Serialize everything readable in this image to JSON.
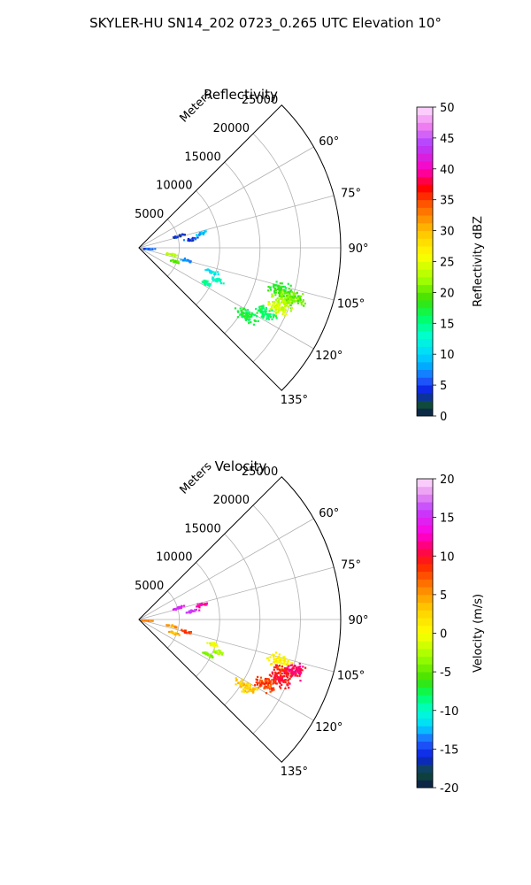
{
  "figure": {
    "title": "SKYLER-HU  SN14_202  0723_0.265 UTC Elevation 10°"
  },
  "chart_data": [
    {
      "type": "scatter",
      "subtype": "polar-sector-radar",
      "title": "Reflectivity",
      "range_label": "Meters",
      "range_ticks": [
        5000,
        10000,
        15000,
        20000,
        25000
      ],
      "range_max": 25000,
      "azimuth_ticks": [
        "60°",
        "75°",
        "90°",
        "105°",
        "120°",
        "135°"
      ],
      "azimuth_tick_values": [
        60,
        75,
        90,
        105,
        120,
        135
      ],
      "azimuth_range": [
        45,
        135
      ],
      "grid": true,
      "colorbar": {
        "label": "Reflectivity dBZ",
        "min": 0,
        "max": 50,
        "ticks": [
          0,
          5,
          10,
          15,
          20,
          25,
          30,
          35,
          40,
          45,
          50
        ]
      },
      "clusters": [
        {
          "azimuth": 106,
          "range": 18000,
          "value": 18
        },
        {
          "azimuth": 110,
          "range": 19000,
          "value": 22
        },
        {
          "azimuth": 108,
          "range": 20000,
          "value": 20
        },
        {
          "azimuth": 113,
          "range": 18500,
          "value": 24
        },
        {
          "azimuth": 117,
          "range": 17500,
          "value": 16
        },
        {
          "azimuth": 122,
          "range": 15500,
          "value": 17
        },
        {
          "azimuth": 108,
          "range": 9500,
          "value": 11
        },
        {
          "azimuth": 112,
          "range": 10500,
          "value": 13
        },
        {
          "azimuth": 117,
          "range": 9500,
          "value": 15
        },
        {
          "azimuth": 104,
          "range": 6000,
          "value": 7
        },
        {
          "azimuth": 110,
          "range": 4500,
          "value": 20
        },
        {
          "azimuth": 100,
          "range": 4000,
          "value": 23
        },
        {
          "azimuth": 80,
          "range": 6500,
          "value": 5
        },
        {
          "azimuth": 72,
          "range": 5000,
          "value": 4
        },
        {
          "azimuth": 76,
          "range": 8000,
          "value": 9
        },
        {
          "azimuth": 92,
          "range": 1000,
          "value": 6
        }
      ]
    },
    {
      "type": "scatter",
      "subtype": "polar-sector-radar",
      "title": "Velocity",
      "range_label": "Meters",
      "range_ticks": [
        5000,
        10000,
        15000,
        20000,
        25000
      ],
      "range_max": 25000,
      "azimuth_ticks": [
        "60°",
        "75°",
        "90°",
        "105°",
        "120°",
        "135°"
      ],
      "azimuth_tick_values": [
        60,
        75,
        90,
        105,
        120,
        135
      ],
      "azimuth_range": [
        45,
        135
      ],
      "grid": true,
      "colorbar": {
        "label": "Velocity (m/s)",
        "min": -20,
        "max": 20,
        "ticks": [
          -20,
          -15,
          -10,
          -5,
          0,
          5,
          10,
          15,
          20
        ]
      },
      "clusters": [
        {
          "azimuth": 106,
          "range": 18000,
          "value": 1
        },
        {
          "azimuth": 110,
          "range": 19000,
          "value": 9
        },
        {
          "azimuth": 108,
          "range": 20000,
          "value": 11
        },
        {
          "azimuth": 113,
          "range": 18500,
          "value": 10
        },
        {
          "azimuth": 117,
          "range": 17500,
          "value": 8
        },
        {
          "azimuth": 122,
          "range": 15500,
          "value": 3
        },
        {
          "azimuth": 108,
          "range": 9500,
          "value": 0
        },
        {
          "azimuth": 112,
          "range": 10500,
          "value": -3
        },
        {
          "azimuth": 117,
          "range": 9500,
          "value": -4
        },
        {
          "azimuth": 104,
          "range": 6000,
          "value": 8
        },
        {
          "azimuth": 110,
          "range": 4500,
          "value": 4
        },
        {
          "azimuth": 100,
          "range": 4000,
          "value": 5
        },
        {
          "azimuth": 80,
          "range": 6500,
          "value": 15
        },
        {
          "azimuth": 72,
          "range": 5000,
          "value": 15
        },
        {
          "azimuth": 76,
          "range": 8000,
          "value": 12
        },
        {
          "azimuth": 92,
          "range": 1000,
          "value": 6
        }
      ]
    }
  ]
}
